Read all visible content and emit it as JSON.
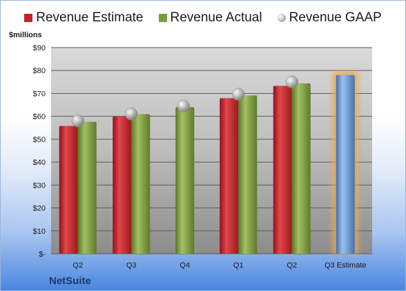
{
  "chart_data": {
    "type": "bar",
    "unit_label": "$millions",
    "company": "NetSuite",
    "categories": [
      "Q2",
      "Q3",
      "Q4",
      "Q1",
      "Q2",
      "Q3 Estimate"
    ],
    "series": [
      {
        "name": "Revenue Estimate",
        "values": [
          55.8,
          59.9,
          null,
          67.9,
          73.3,
          null
        ],
        "color": "#c0262a"
      },
      {
        "name": "Revenue Actual",
        "values": [
          57.6,
          61.0,
          64.0,
          69.1,
          74.4,
          null
        ],
        "color": "#7a9a3a"
      },
      {
        "name": "Revenue GAAP",
        "values": [
          58.0,
          61.0,
          64.5,
          69.6,
          75.0,
          null
        ],
        "color": "#c8c8c8",
        "marker": "sphere"
      }
    ],
    "highlight": {
      "category": "Q3 Estimate",
      "value": 78.0,
      "color": "#6e9ad2",
      "glow": "#f2a54a"
    },
    "yticks": [
      "$-",
      "$10",
      "$20",
      "$30",
      "$40",
      "$50",
      "$60",
      "$70",
      "$80",
      "$90"
    ],
    "ylim": [
      0,
      90
    ],
    "grid": true,
    "legend_position": "top"
  }
}
